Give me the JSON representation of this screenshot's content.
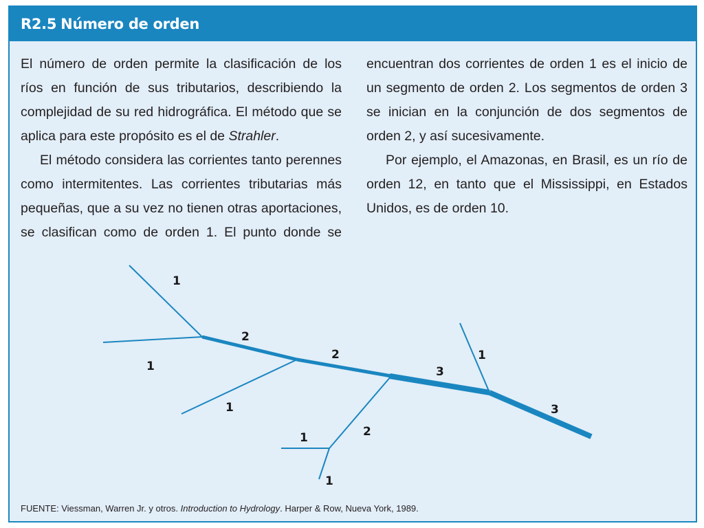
{
  "header": {
    "number": "R2.5",
    "title": "Número de orden"
  },
  "body": {
    "p1_a": "El número de orden permite la clasificación de los ríos en función de sus tributarios, describiendo la complejidad de su red hidrográfica. El método que se aplica para este propósito es el de ",
    "p1_italic": "Strahler",
    "p1_b": ".",
    "p2": "El método considera las corrientes tanto perennes como intermitentes. Las corrientes tributarias más pequeñas, que a su vez no tienen otras aportaciones, se clasifican como de orden 1. El punto donde se encuentran dos corrientes de orden 1 es el inicio de un segmento de orden 2. Los segmentos de orden 3 se inician en la conjunción de dos segmentos de orden 2, y así sucesivamente.",
    "p3": "Por ejemplo, el Amazonas, en Brasil, es un río de orden 12, en tanto que el Mississippi, en Estados Unidos, es de orden 10."
  },
  "diagram": {
    "labels": {
      "l1": "1",
      "l2": "1",
      "l3": "1",
      "l4": "2",
      "l5": "2",
      "l6": "3",
      "l7": "1",
      "l8": "3",
      "l9": "1",
      "l10": "2",
      "l11": "1"
    }
  },
  "source": {
    "prefix": "FUENTE: Viessman, Warren Jr. y otros. ",
    "italic": "Introduction to Hydrology",
    "suffix": ". Harper & Row, Nueva York, 1989."
  },
  "colors": {
    "accent": "#1a86c0",
    "background": "#e2eef8",
    "text": "#231f20"
  }
}
